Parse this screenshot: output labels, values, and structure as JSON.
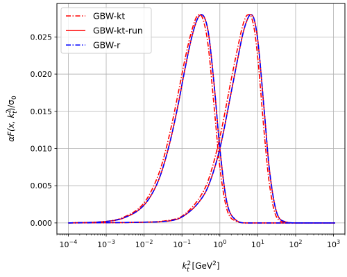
{
  "chart_data": {
    "type": "line",
    "xscale": "log",
    "xlim": [
      5e-05,
      2000
    ],
    "ylim": [
      -0.0015,
      0.0295
    ],
    "grid": true,
    "legend_position": "upper-left",
    "xlabel_base": "k",
    "xlabel_sub": "t",
    "xlabel_sup": "2",
    "xlabel_unit": "[GeV",
    "xlabel_unit_sup": "2",
    "xlabel_unit_close": "]",
    "ylabel_text": "αF(x, k",
    "ylabel_sub": "t",
    "ylabel_sup": "2",
    "ylabel_tail": ")/σ",
    "ylabel_tail_sub": "0",
    "xtick_values": [
      0.0001,
      0.001,
      0.01,
      0.1,
      1,
      10,
      100,
      1000
    ],
    "xtick_labels": [
      {
        "base": "10",
        "exp": "−4"
      },
      {
        "base": "10",
        "exp": "−3"
      },
      {
        "base": "10",
        "exp": "−2"
      },
      {
        "base": "10",
        "exp": "−1"
      },
      {
        "base": "10",
        "exp": "0"
      },
      {
        "base": "10",
        "exp": "1"
      },
      {
        "base": "10",
        "exp": "2"
      },
      {
        "base": "10",
        "exp": "3"
      }
    ],
    "ytick_values": [
      0,
      0.005,
      0.01,
      0.015,
      0.02,
      0.025
    ],
    "ytick_labels": [
      "0.000",
      "0.005",
      "0.010",
      "0.015",
      "0.020",
      "0.025"
    ],
    "series": [
      {
        "name": "GBW-kt",
        "color": "#ff0000",
        "dash": "dashdot",
        "groups": [
          {
            "x": [
              0.0001,
              0.001,
              0.003,
              0.01,
              0.02,
              0.03,
              0.05,
              0.08,
              0.12,
              0.18,
              0.25,
              0.3,
              0.4,
              0.5,
              0.7,
              1.0,
              1.5,
              2.5,
              5,
              100,
              1100
            ],
            "y": [
              0.0,
              0.0002,
              0.0008,
              0.0027,
              0.0055,
              0.008,
              0.0125,
              0.0175,
              0.022,
              0.0258,
              0.0278,
              0.028,
              0.0265,
              0.0235,
              0.0158,
              0.0075,
              0.002,
              0.0003,
              0.0,
              0.0,
              0.0
            ]
          },
          {
            "x": [
              0.0001,
              0.01,
              0.05,
              0.1,
              0.3,
              0.5,
              1.0,
              2.0,
              3.0,
              4.0,
              5.0,
              6.0,
              8.0,
              10,
              15,
              20,
              30,
              50,
              100,
              1100
            ],
            "y": [
              0.0,
              0.0001,
              0.0004,
              0.0009,
              0.0035,
              0.0058,
              0.0115,
              0.0193,
              0.0237,
              0.0265,
              0.0278,
              0.028,
              0.0262,
              0.0222,
              0.0118,
              0.0055,
              0.001,
              0.0001,
              0.0,
              0.0
            ]
          }
        ]
      },
      {
        "name": "GBW-kt-run",
        "color": "#ff0000",
        "dash": "solid",
        "groups": [
          {
            "x": [
              0.0001,
              0.001,
              0.003,
              0.01,
              0.02,
              0.03,
              0.05,
              0.08,
              0.12,
              0.18,
              0.25,
              0.32,
              0.4,
              0.5,
              0.7,
              1.0,
              1.5,
              2.5,
              5,
              100,
              1100
            ],
            "y": [
              0.0,
              0.0002,
              0.0007,
              0.0024,
              0.0048,
              0.0071,
              0.0112,
              0.016,
              0.0207,
              0.0249,
              0.0273,
              0.028,
              0.0275,
              0.0255,
              0.0188,
              0.01,
              0.003,
              0.0005,
              0.0,
              0.0,
              0.0
            ]
          },
          {
            "x": [
              0.0001,
              0.01,
              0.05,
              0.1,
              0.3,
              0.5,
              1.0,
              2.0,
              3.0,
              4.0,
              5.0,
              6.5,
              8.0,
              10,
              15,
              20,
              30,
              50,
              100,
              1100
            ],
            "y": [
              0.0,
              0.0001,
              0.0003,
              0.0008,
              0.003,
              0.005,
              0.01,
              0.0176,
              0.0222,
              0.0253,
              0.027,
              0.028,
              0.0274,
              0.0246,
              0.0148,
              0.0075,
              0.0018,
              0.0002,
              0.0,
              0.0
            ]
          }
        ]
      },
      {
        "name": "GBW-r",
        "color": "#0000ff",
        "dash": "dashdot",
        "groups": [
          {
            "x": [
              0.0001,
              0.001,
              0.003,
              0.01,
              0.02,
              0.03,
              0.05,
              0.08,
              0.12,
              0.18,
              0.25,
              0.32,
              0.4,
              0.5,
              0.7,
              1.0,
              1.5,
              2.5,
              5,
              100,
              1100
            ],
            "y": [
              0.0,
              0.0002,
              0.0007,
              0.0024,
              0.0048,
              0.0071,
              0.0112,
              0.016,
              0.0207,
              0.0249,
              0.0273,
              0.028,
              0.0275,
              0.0255,
              0.0188,
              0.01,
              0.003,
              0.0005,
              0.0,
              0.0,
              0.0
            ]
          },
          {
            "x": [
              0.0001,
              0.01,
              0.05,
              0.1,
              0.3,
              0.5,
              1.0,
              2.0,
              3.0,
              4.0,
              5.0,
              6.5,
              8.0,
              10,
              15,
              20,
              30,
              50,
              100,
              1100
            ],
            "y": [
              0.0,
              0.0001,
              0.0003,
              0.0008,
              0.003,
              0.005,
              0.01,
              0.0176,
              0.0222,
              0.0253,
              0.027,
              0.028,
              0.0274,
              0.0246,
              0.0148,
              0.0075,
              0.0018,
              0.0002,
              0.0,
              0.0
            ]
          }
        ]
      }
    ]
  }
}
